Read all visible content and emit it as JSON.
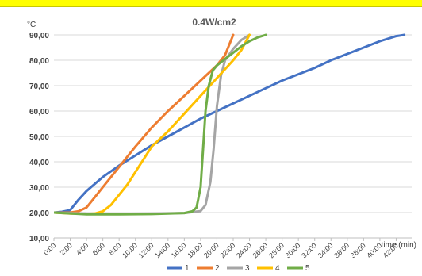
{
  "chart_data": {
    "type": "line",
    "title": "0.4W/cm2",
    "ylabel": "°C",
    "xlabel": "time (min)",
    "ylim": [
      10,
      90
    ],
    "xlim": [
      0,
      44
    ],
    "grid": true,
    "legend_position": "bottom",
    "y_ticks": [
      "10,00",
      "20,00",
      "30,00",
      "40,00",
      "50,00",
      "60,00",
      "70,00",
      "80,00",
      "90,00"
    ],
    "x_ticks": [
      "0:00",
      "2:00",
      "4:00",
      "6:00",
      "8:00",
      "10:00",
      "12:00",
      "14:00",
      "16:00",
      "18:00",
      "20:00",
      "22:00",
      "24:00",
      "26:00",
      "28:00",
      "30:00",
      "32:00",
      "34:00",
      "36:00",
      "38:00",
      "40:00",
      "42:00"
    ],
    "series": [
      {
        "name": "1",
        "color": "#4472c4",
        "x": [
          0,
          1,
          2,
          3,
          4,
          6,
          8,
          10,
          12,
          14,
          16,
          18,
          20,
          22,
          24,
          26,
          28,
          30,
          32,
          34,
          36,
          38,
          40,
          42,
          43
        ],
        "y": [
          20,
          20.3,
          21,
          25,
          28.5,
          34,
          38.5,
          42.5,
          46.5,
          50,
          53.5,
          57,
          60,
          63,
          66,
          69,
          72,
          74.5,
          77,
          80,
          82.5,
          85,
          87.5,
          89.5,
          90
        ]
      },
      {
        "name": "2",
        "color": "#ed7d31",
        "x": [
          0,
          2,
          3,
          4,
          5,
          6,
          7,
          8,
          10,
          12,
          14,
          16,
          18,
          20,
          21,
          22
        ],
        "y": [
          20,
          20,
          20.5,
          22,
          26,
          30,
          34,
          38,
          46,
          53.5,
          60,
          66,
          72,
          78,
          82,
          90
        ]
      },
      {
        "name": "3",
        "color": "#a5a5a5",
        "x": [
          0,
          4,
          8,
          12,
          16,
          18,
          18.6,
          19.2,
          19.6,
          20,
          20.5,
          21,
          22,
          23,
          24
        ],
        "y": [
          20,
          19.6,
          19.5,
          19.6,
          19.8,
          20.6,
          23,
          32,
          45,
          62,
          74,
          80,
          84.5,
          88,
          90
        ]
      },
      {
        "name": "4",
        "color": "#ffc000",
        "x": [
          0,
          2,
          4,
          5,
          6,
          7,
          8,
          9,
          10,
          11,
          12,
          14,
          16,
          18,
          20,
          22,
          23,
          24
        ],
        "y": [
          20,
          19.6,
          19.5,
          19.6,
          20.5,
          23,
          27,
          31,
          36,
          41,
          46,
          52,
          59,
          66,
          73,
          80,
          84,
          90
        ]
      },
      {
        "name": "5",
        "color": "#70ad47",
        "x": [
          0,
          4,
          8,
          12,
          16,
          17,
          17.5,
          18,
          18.3,
          18.6,
          19,
          19.5,
          20,
          21,
          22,
          23,
          24,
          25,
          26
        ],
        "y": [
          20,
          19.3,
          19.3,
          19.4,
          19.8,
          20.5,
          22,
          30,
          45,
          60,
          70,
          76,
          78,
          80.5,
          83,
          85.5,
          87.5,
          89,
          90
        ]
      }
    ]
  }
}
